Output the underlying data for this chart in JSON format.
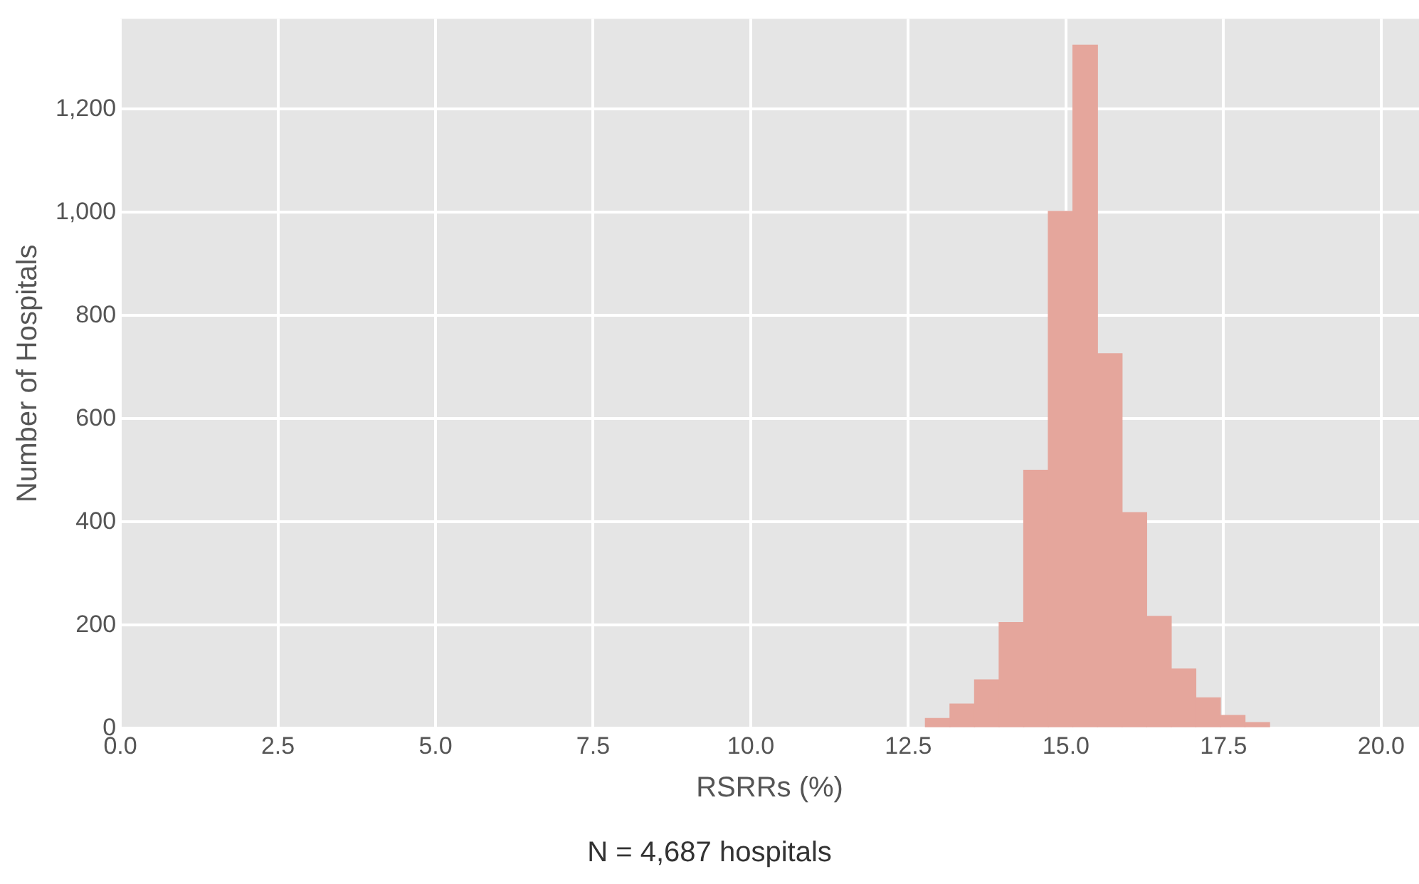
{
  "chart_data": {
    "type": "histogram",
    "xlabel": "RSRRs (%)",
    "ylabel": "Number of Hospitals",
    "bins": [
      12.77,
      13.16,
      13.55,
      13.94,
      14.33,
      14.72,
      15.11,
      15.5,
      15.89,
      16.28,
      16.67,
      17.06,
      17.45,
      17.84,
      18.23
    ],
    "values": [
      19,
      47,
      94,
      205,
      500,
      1002,
      1324,
      726,
      418,
      217,
      115,
      59,
      25,
      11
    ],
    "color": "#e5a69c",
    "xlim": [
      0,
      20.6
    ],
    "xticks": [
      {
        "value": 0,
        "label": "0.0"
      },
      {
        "value": 2.5,
        "label": "2.5"
      },
      {
        "value": 5,
        "label": "5.0"
      },
      {
        "value": 7.5,
        "label": "7.5"
      },
      {
        "value": 10,
        "label": "10.0"
      },
      {
        "value": 12.5,
        "label": "12.5"
      },
      {
        "value": 15,
        "label": "15.0"
      },
      {
        "value": 17.5,
        "label": "17.5"
      },
      {
        "value": 20,
        "label": "20.0"
      }
    ],
    "ylim": [
      0,
      1375
    ],
    "yticks": [
      0,
      200,
      400,
      600,
      800,
      {
        "value": 1000,
        "label": "1,000"
      },
      {
        "value": 1200,
        "label": "1,200"
      }
    ],
    "grid": true,
    "annotations": [
      "N = 4,687 hospitals"
    ]
  }
}
